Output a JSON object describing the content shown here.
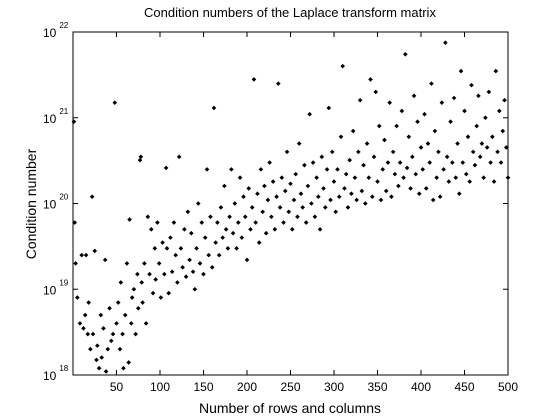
{
  "chart_data": {
    "type": "scatter",
    "title": "Condition numbers of the Laplace transform matrix",
    "xlabel": "Number of rows and columns",
    "ylabel": "Condition number",
    "color": "#000000",
    "yscale": "log",
    "xlim": [
      0,
      500
    ],
    "ylim": [
      1e+18,
      1e+22
    ],
    "xticks": [
      50,
      100,
      150,
      200,
      250,
      300,
      350,
      400,
      450,
      500
    ],
    "yticks": [
      {
        "value": 1e+18,
        "label": "10^18"
      },
      {
        "value": 1e+19,
        "label": "10^19"
      },
      {
        "value": 1e+20,
        "label": "10^20"
      },
      {
        "value": 1e+21,
        "label": "10^21"
      },
      {
        "value": 1e+22,
        "label": "10^22"
      }
    ],
    "x": [
      1,
      2,
      3,
      5,
      8,
      10,
      12,
      14,
      15,
      17,
      18,
      20,
      22,
      23,
      25,
      27,
      28,
      30,
      32,
      33,
      35,
      37,
      38,
      40,
      42,
      44,
      46,
      48,
      50,
      52,
      54,
      55,
      57,
      58,
      60,
      62,
      64,
      65,
      67,
      68,
      70,
      72,
      74,
      75,
      77,
      78,
      79,
      80,
      82,
      84,
      86,
      88,
      90,
      92,
      94,
      95,
      97,
      99,
      101,
      103,
      105,
      107,
      108,
      110,
      112,
      114,
      116,
      118,
      120,
      122,
      124,
      126,
      128,
      130,
      132,
      134,
      136,
      138,
      140,
      142,
      144,
      146,
      148,
      150,
      152,
      154,
      156,
      158,
      160,
      162,
      164,
      166,
      168,
      170,
      172,
      174,
      176,
      178,
      180,
      182,
      184,
      186,
      188,
      190,
      192,
      194,
      196,
      198,
      200,
      202,
      204,
      206,
      208,
      210,
      212,
      214,
      216,
      218,
      220,
      222,
      224,
      226,
      228,
      230,
      232,
      234,
      236,
      238,
      240,
      242,
      244,
      246,
      248,
      250,
      252,
      254,
      256,
      258,
      260,
      262,
      264,
      266,
      268,
      270,
      272,
      274,
      276,
      278,
      280,
      282,
      284,
      286,
      288,
      290,
      292,
      294,
      296,
      298,
      300,
      302,
      304,
      306,
      308,
      310,
      312,
      314,
      316,
      318,
      320,
      322,
      324,
      326,
      328,
      330,
      332,
      334,
      336,
      338,
      340,
      342,
      344,
      346,
      348,
      350,
      352,
      354,
      356,
      358,
      360,
      362,
      364,
      366,
      368,
      370,
      372,
      374,
      376,
      378,
      380,
      382,
      384,
      386,
      388,
      390,
      392,
      394,
      396,
      398,
      400,
      402,
      404,
      406,
      408,
      410,
      412,
      414,
      416,
      418,
      420,
      422,
      424,
      426,
      428,
      430,
      432,
      434,
      436,
      438,
      440,
      442,
      444,
      446,
      448,
      450,
      452,
      454,
      456,
      458,
      460,
      462,
      464,
      466,
      468,
      470,
      472,
      474,
      476,
      478,
      480,
      482,
      484,
      486,
      488,
      490,
      492,
      494,
      496,
      498,
      500
    ],
    "y": [
      9e+20,
      6e+19,
      2e+19,
      8e+18,
      4e+18,
      2.5e+19,
      3.5e+18,
      5e+18,
      2.5e+19,
      3e+18,
      7e+18,
      2e+18,
      1.2e+20,
      3e+18,
      2.8e+19,
      1.5e+18,
      2.2e+18,
      1.2e+18,
      5e+18,
      1.6e+18,
      3.5e+18,
      2.2e+19,
      1.1e+18,
      2e+18,
      6e+18,
      2.5e+18,
      3e+18,
      1.5e+21,
      4e+18,
      7e+18,
      2e+18,
      1.2e+19,
      3e+18,
      1.2e+18,
      5e+18,
      2e+19,
      1.4e+18,
      6.5e+19,
      4e+18,
      8e+18,
      1e+19,
      3e+18,
      1.5e+19,
      6e+18,
      3.2e+20,
      3.5e+20,
      1.2e+19,
      7e+18,
      2e+19,
      4e+18,
      7e+19,
      1.5e+19,
      5e+19,
      9e+18,
      3e+19,
      1.3e+19,
      6e+19,
      2e+19,
      8e+18,
      3.5e+19,
      1.5e+19,
      2.6e+20,
      3e+19,
      9e+18,
      4e+19,
      1.6e+19,
      6e+19,
      2.5e+19,
      1.2e+19,
      3.5e+20,
      3e+19,
      1.8e+19,
      5e+19,
      1.4e+19,
      8e+19,
      2.2e+19,
      4.5e+19,
      1.6e+19,
      1e+19,
      3e+19,
      1e+20,
      2e+19,
      6e+19,
      1.5e+19,
      4e+19,
      2.5e+20,
      2.5e+19,
      7e+19,
      1.8e+19,
      1.3e+21,
      3.5e+19,
      6e+19,
      2.5e+19,
      9e+19,
      4e+19,
      1.6e+20,
      5e+19,
      3e+19,
      7e+19,
      2.5e+20,
      4.5e+19,
      1e+20,
      3e+19,
      6e+19,
      2e+20,
      4e+19,
      1.2e+20,
      7e+19,
      2.2e+19,
      1.5e+20,
      5e+19,
      9e+19,
      2.8e+21,
      6e+19,
      1.3e+20,
      3.5e+19,
      2.5e+20,
      8e+19,
      1.6e+20,
      4.5e+19,
      1.1e+20,
      3e+20,
      7e+19,
      1.8e+20,
      5e+19,
      1.2e+20,
      2.5e+21,
      9e+19,
      2e+20,
      6e+19,
      1.4e+20,
      4e+20,
      8e+19,
      1.7e+20,
      5e+19,
      1.1e+20,
      2.2e+20,
      7e+19,
      5e+20,
      1.3e+20,
      9e+19,
      2.8e+20,
      6e+19,
      1.6e+20,
      1.1e+21,
      1e+20,
      3e+20,
      7e+19,
      2e+20,
      1.2e+20,
      5e+19,
      3.5e+20,
      1.5e+20,
      9e+19,
      2.5e+20,
      1.3e+21,
      1.1e+20,
      4e+20,
      1.8e+20,
      8e+19,
      2.5e+20,
      1.2e+20,
      6e+20,
      4e+21,
      1.5e+20,
      2.2e+20,
      9e+19,
      3.2e+20,
      1.3e+20,
      7e+20,
      2e+20,
      1.1e+20,
      4e+20,
      1.6e+21,
      1.4e+20,
      2.8e+20,
      1e+20,
      5e+20,
      2e+20,
      2.8e+21,
      1.2e+20,
      3.5e+20,
      2e+21,
      1.8e+20,
      8e+20,
      1.1e+20,
      2.5e+20,
      5.5e+20,
      1.4e+20,
      3e+20,
      1.5e+21,
      1.2e+20,
      4e+20,
      2.2e+20,
      8e+20,
      1.6e+20,
      3e+20,
      1.2e+21,
      2e+20,
      5.5e+21,
      2.6e+20,
      6e+20,
      1.5e+20,
      3.5e+20,
      1.8e+21,
      2.2e+20,
      9e+20,
      1.3e+20,
      4.5e+20,
      2.5e+20,
      1.1e+21,
      1.5e+20,
      5e+20,
      3e+20,
      2.5e+21,
      1.1e+20,
      7e+20,
      2e+20,
      4e+20,
      1.2e+20,
      1.5e+21,
      2.5e+20,
      7.5e+21,
      3.5e+20,
      1.8e+20,
      9e+20,
      3e+20,
      1.7e+21,
      2e+20,
      5e+20,
      1.3e+20,
      3.5e+21,
      3e+20,
      1.2e+21,
      2.2e+20,
      6e+20,
      1.8e+20,
      2.4e+21,
      4e+20,
      2.8e+20,
      8e+20,
      1.8e+21,
      3.5e+20,
      5e+20,
      2e+20,
      1e+21,
      4.5e+20,
      2e+21,
      3e+20,
      6e+20,
      1.8e+20,
      3.5e+21,
      4e+20,
      1.2e+21,
      3e+20,
      7e+20,
      1.6e+21,
      4.5e+20,
      2e+20
    ]
  }
}
